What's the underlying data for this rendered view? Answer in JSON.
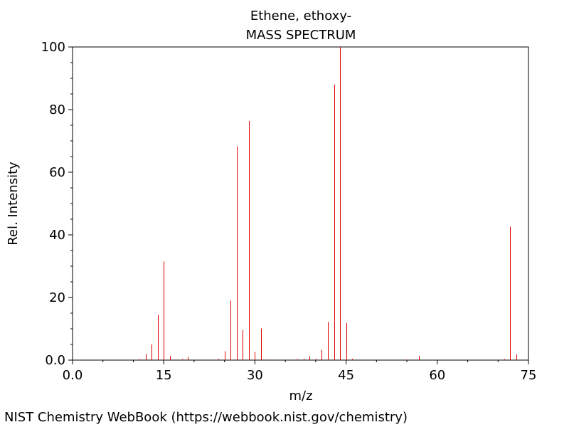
{
  "footer": "NIST Chemistry WebBook (https://webbook.nist.gov/chemistry)",
  "chart_data": {
    "type": "bar",
    "title": "Ethene, ethoxy-",
    "subtitle": "MASS SPECTRUM",
    "xlabel": "m/z",
    "ylabel": "Rel. Intensity",
    "xlim": [
      0,
      75
    ],
    "ylim": [
      0,
      100
    ],
    "x_ticks": [
      {
        "value": 0,
        "label": "0.0"
      },
      {
        "value": 15,
        "label": "15"
      },
      {
        "value": 30,
        "label": "30"
      },
      {
        "value": 45,
        "label": "45"
      },
      {
        "value": 60,
        "label": "60"
      },
      {
        "value": 75,
        "label": "75"
      }
    ],
    "y_ticks": [
      {
        "value": 0,
        "label": "0.0"
      },
      {
        "value": 20,
        "label": "20"
      },
      {
        "value": 40,
        "label": "40"
      },
      {
        "value": 60,
        "label": "60"
      },
      {
        "value": 80,
        "label": "80"
      },
      {
        "value": 100,
        "label": "100"
      }
    ],
    "grid": false,
    "bar_color": "#e00000",
    "peaks": [
      {
        "mz": 10,
        "intensity": 0.1
      },
      {
        "mz": 11,
        "intensity": 0.3
      },
      {
        "mz": 12,
        "intensity": 2.0
      },
      {
        "mz": 13,
        "intensity": 5.0
      },
      {
        "mz": 14,
        "intensity": 14.5
      },
      {
        "mz": 15,
        "intensity": 31.5
      },
      {
        "mz": 16,
        "intensity": 1.3
      },
      {
        "mz": 17,
        "intensity": 0.2
      },
      {
        "mz": 18,
        "intensity": 0.3
      },
      {
        "mz": 19,
        "intensity": 1.0
      },
      {
        "mz": 24,
        "intensity": 0.4
      },
      {
        "mz": 25,
        "intensity": 2.8
      },
      {
        "mz": 26,
        "intensity": 19.0
      },
      {
        "mz": 27,
        "intensity": 68.2
      },
      {
        "mz": 28,
        "intensity": 9.6
      },
      {
        "mz": 29,
        "intensity": 76.4
      },
      {
        "mz": 30,
        "intensity": 2.6
      },
      {
        "mz": 31,
        "intensity": 10.1
      },
      {
        "mz": 32,
        "intensity": 0.2
      },
      {
        "mz": 37,
        "intensity": 0.3
      },
      {
        "mz": 38,
        "intensity": 0.4
      },
      {
        "mz": 39,
        "intensity": 1.3
      },
      {
        "mz": 40,
        "intensity": 0.4
      },
      {
        "mz": 41,
        "intensity": 3.3
      },
      {
        "mz": 42,
        "intensity": 12.2
      },
      {
        "mz": 43,
        "intensity": 88.0
      },
      {
        "mz": 44,
        "intensity": 100.0
      },
      {
        "mz": 45,
        "intensity": 11.9
      },
      {
        "mz": 46,
        "intensity": 0.4
      },
      {
        "mz": 55,
        "intensity": 0.2
      },
      {
        "mz": 57,
        "intensity": 1.4
      },
      {
        "mz": 71,
        "intensity": 0.3
      },
      {
        "mz": 72,
        "intensity": 42.6
      },
      {
        "mz": 73,
        "intensity": 1.8
      }
    ]
  }
}
